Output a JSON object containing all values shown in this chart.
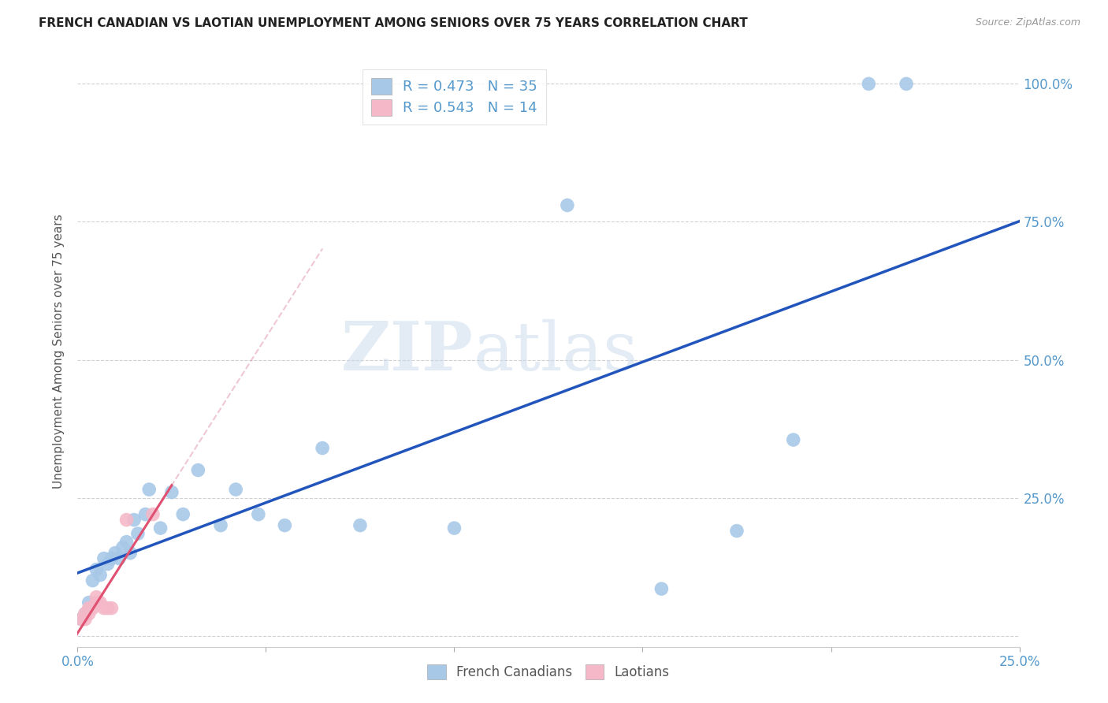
{
  "title": "FRENCH CANADIAN VS LAOTIAN UNEMPLOYMENT AMONG SENIORS OVER 75 YEARS CORRELATION CHART",
  "source": "Source: ZipAtlas.com",
  "ylabel": "Unemployment Among Seniors over 75 years",
  "xlim": [
    0,
    0.25
  ],
  "ylim": [
    -0.02,
    1.05
  ],
  "blue_color": "#a8c8e8",
  "pink_color": "#f4b8c8",
  "blue_line_color": "#2255bb",
  "pink_line_color": "#e05070",
  "pink_dash_color": "#e8b0c0",
  "R_blue": 0.473,
  "N_blue": 35,
  "R_pink": 0.543,
  "N_pink": 14,
  "watermark_zip": "ZIP",
  "watermark_atlas": "atlas",
  "french_canadian_x": [
    0.001,
    0.002,
    0.003,
    0.004,
    0.005,
    0.006,
    0.007,
    0.008,
    0.009,
    0.01,
    0.011,
    0.012,
    0.013,
    0.014,
    0.015,
    0.016,
    0.018,
    0.019,
    0.022,
    0.025,
    0.028,
    0.032,
    0.038,
    0.042,
    0.048,
    0.055,
    0.065,
    0.075,
    0.1,
    0.13,
    0.155,
    0.175,
    0.19,
    0.21,
    0.22
  ],
  "french_canadian_y": [
    0.03,
    0.04,
    0.06,
    0.1,
    0.12,
    0.11,
    0.14,
    0.13,
    0.14,
    0.15,
    0.14,
    0.16,
    0.17,
    0.15,
    0.21,
    0.185,
    0.22,
    0.265,
    0.195,
    0.26,
    0.22,
    0.3,
    0.2,
    0.265,
    0.22,
    0.2,
    0.34,
    0.2,
    0.195,
    0.78,
    0.085,
    0.19,
    0.355,
    1.0,
    1.0
  ],
  "laotian_x": [
    0.001,
    0.002,
    0.002,
    0.003,
    0.003,
    0.004,
    0.005,
    0.005,
    0.006,
    0.007,
    0.008,
    0.009,
    0.013,
    0.02
  ],
  "laotian_y": [
    0.03,
    0.03,
    0.04,
    0.04,
    0.05,
    0.05,
    0.06,
    0.07,
    0.06,
    0.05,
    0.05,
    0.05,
    0.21,
    0.22
  ],
  "grid_color": "#cccccc",
  "tick_color": "#5599cc",
  "background_color": "#ffffff"
}
